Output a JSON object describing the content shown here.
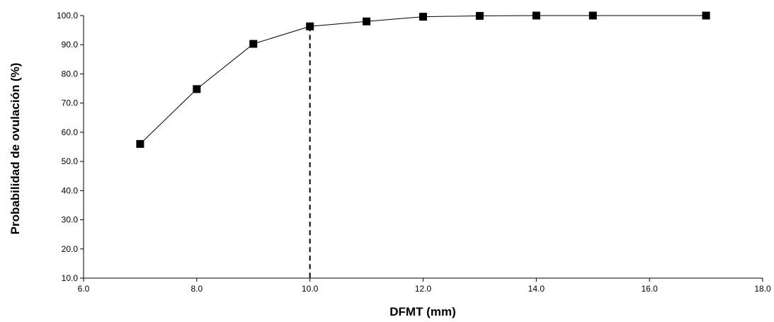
{
  "chart_data": {
    "type": "line",
    "title": "",
    "xlabel": "DFMT (mm)",
    "ylabel": "Probabilidad de ovulación (%)",
    "xlim": [
      6.0,
      18.0
    ],
    "ylim": [
      10.0,
      100.0
    ],
    "x_ticks": [
      6.0,
      8.0,
      10.0,
      12.0,
      14.0,
      16.0,
      18.0
    ],
    "y_ticks": [
      10.0,
      20.0,
      30.0,
      40.0,
      50.0,
      60.0,
      70.0,
      80.0,
      90.0,
      100.0
    ],
    "x_tick_labels": [
      "6.0",
      "8.0",
      "10.0",
      "12.0",
      "14.0",
      "16.0",
      "18.0"
    ],
    "y_tick_labels": [
      "10.0",
      "20.0",
      "30.0",
      "40.0",
      "50.0",
      "60.0",
      "70.0",
      "80.0",
      "90.0",
      "100.0"
    ],
    "grid": false,
    "legend": "none",
    "series": [
      {
        "x": [
          7,
          8,
          9,
          10,
          11,
          12,
          13,
          14,
          15,
          17
        ],
        "y": [
          56.0,
          74.8,
          90.3,
          96.3,
          98.0,
          99.6,
          99.9,
          100.0,
          100.0,
          100.0
        ],
        "marker": "square",
        "color": "#000000"
      }
    ],
    "reference_line": {
      "orientation": "vertical",
      "x": 10.0,
      "style": "dashed",
      "color": "#000000"
    }
  }
}
